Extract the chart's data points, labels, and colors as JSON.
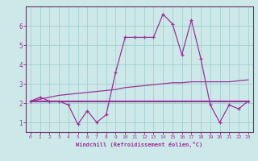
{
  "xlabel": "Windchill (Refroidissement éolien,°C)",
  "background_color": "#cde8e8",
  "plot_bg_color": "#cde8e8",
  "grid_color": "#99cccc",
  "line_color": "#993399",
  "spine_color": "#663366",
  "xlim": [
    -0.5,
    23.5
  ],
  "ylim": [
    0.5,
    7.0
  ],
  "xticks": [
    0,
    1,
    2,
    3,
    4,
    5,
    6,
    7,
    8,
    9,
    10,
    11,
    12,
    13,
    14,
    15,
    16,
    17,
    18,
    19,
    20,
    21,
    22,
    23
  ],
  "yticks": [
    1,
    2,
    3,
    4,
    5,
    6
  ],
  "series1_x": [
    0,
    1,
    2,
    3,
    4,
    5,
    6,
    7,
    8,
    9,
    10,
    11,
    12,
    13,
    14,
    15,
    16,
    17,
    18,
    19,
    20,
    21,
    22,
    23
  ],
  "series1_y": [
    2.1,
    2.3,
    2.1,
    2.1,
    1.9,
    0.9,
    1.6,
    1.0,
    1.4,
    3.6,
    5.4,
    5.4,
    5.4,
    5.4,
    6.6,
    6.1,
    4.5,
    6.3,
    4.3,
    1.9,
    1.0,
    1.9,
    1.7,
    2.1
  ],
  "series2_x": [
    0,
    1,
    2,
    3,
    4,
    5,
    6,
    7,
    8,
    9,
    10,
    11,
    12,
    13,
    14,
    15,
    16,
    17,
    18,
    19,
    20,
    21,
    22,
    23
  ],
  "series2_y": [
    2.1,
    2.2,
    2.3,
    2.4,
    2.45,
    2.5,
    2.55,
    2.6,
    2.65,
    2.7,
    2.8,
    2.85,
    2.9,
    2.95,
    3.0,
    3.05,
    3.05,
    3.1,
    3.1,
    3.1,
    3.1,
    3.1,
    3.15,
    3.2
  ],
  "series3_x": [
    0,
    1,
    2,
    3,
    4,
    5,
    6,
    7,
    8,
    9,
    10,
    11,
    12,
    13,
    14,
    15,
    16,
    17,
    18,
    19,
    20,
    21,
    22,
    23
  ],
  "series3_y": [
    2.1,
    2.1,
    2.1,
    2.1,
    2.1,
    2.1,
    2.1,
    2.1,
    2.1,
    2.1,
    2.1,
    2.1,
    2.1,
    2.1,
    2.1,
    2.1,
    2.1,
    2.1,
    2.1,
    2.1,
    2.1,
    2.1,
    2.1,
    2.1
  ]
}
